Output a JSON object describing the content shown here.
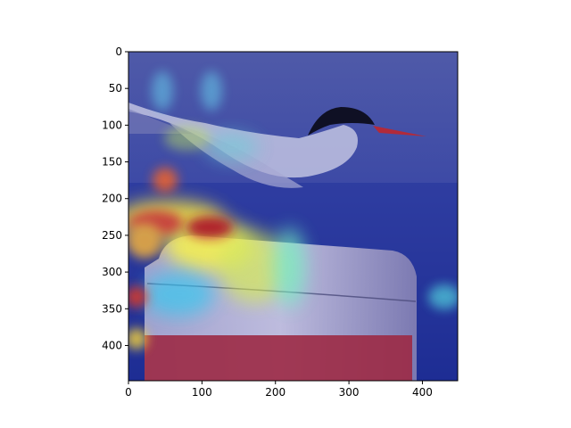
{
  "figure": {
    "background": "#ffffff",
    "axis_color": "#000000"
  },
  "image": {
    "description_colormap": "jet",
    "extent": {
      "x": [
        0,
        448
      ],
      "y": [
        0,
        448
      ]
    }
  },
  "axes": {
    "x_ticks": [
      {
        "value": 0,
        "label": "0"
      },
      {
        "value": 100,
        "label": "100"
      },
      {
        "value": 200,
        "label": "200"
      },
      {
        "value": 300,
        "label": "300"
      },
      {
        "value": 400,
        "label": "400"
      }
    ],
    "y_ticks": [
      {
        "value": 0,
        "label": "0"
      },
      {
        "value": 50,
        "label": "50"
      },
      {
        "value": 100,
        "label": "100"
      },
      {
        "value": 150,
        "label": "150"
      },
      {
        "value": 200,
        "label": "200"
      },
      {
        "value": 250,
        "label": "250"
      },
      {
        "value": 300,
        "label": "300"
      },
      {
        "value": 350,
        "label": "350"
      },
      {
        "value": 400,
        "label": "400"
      }
    ]
  }
}
